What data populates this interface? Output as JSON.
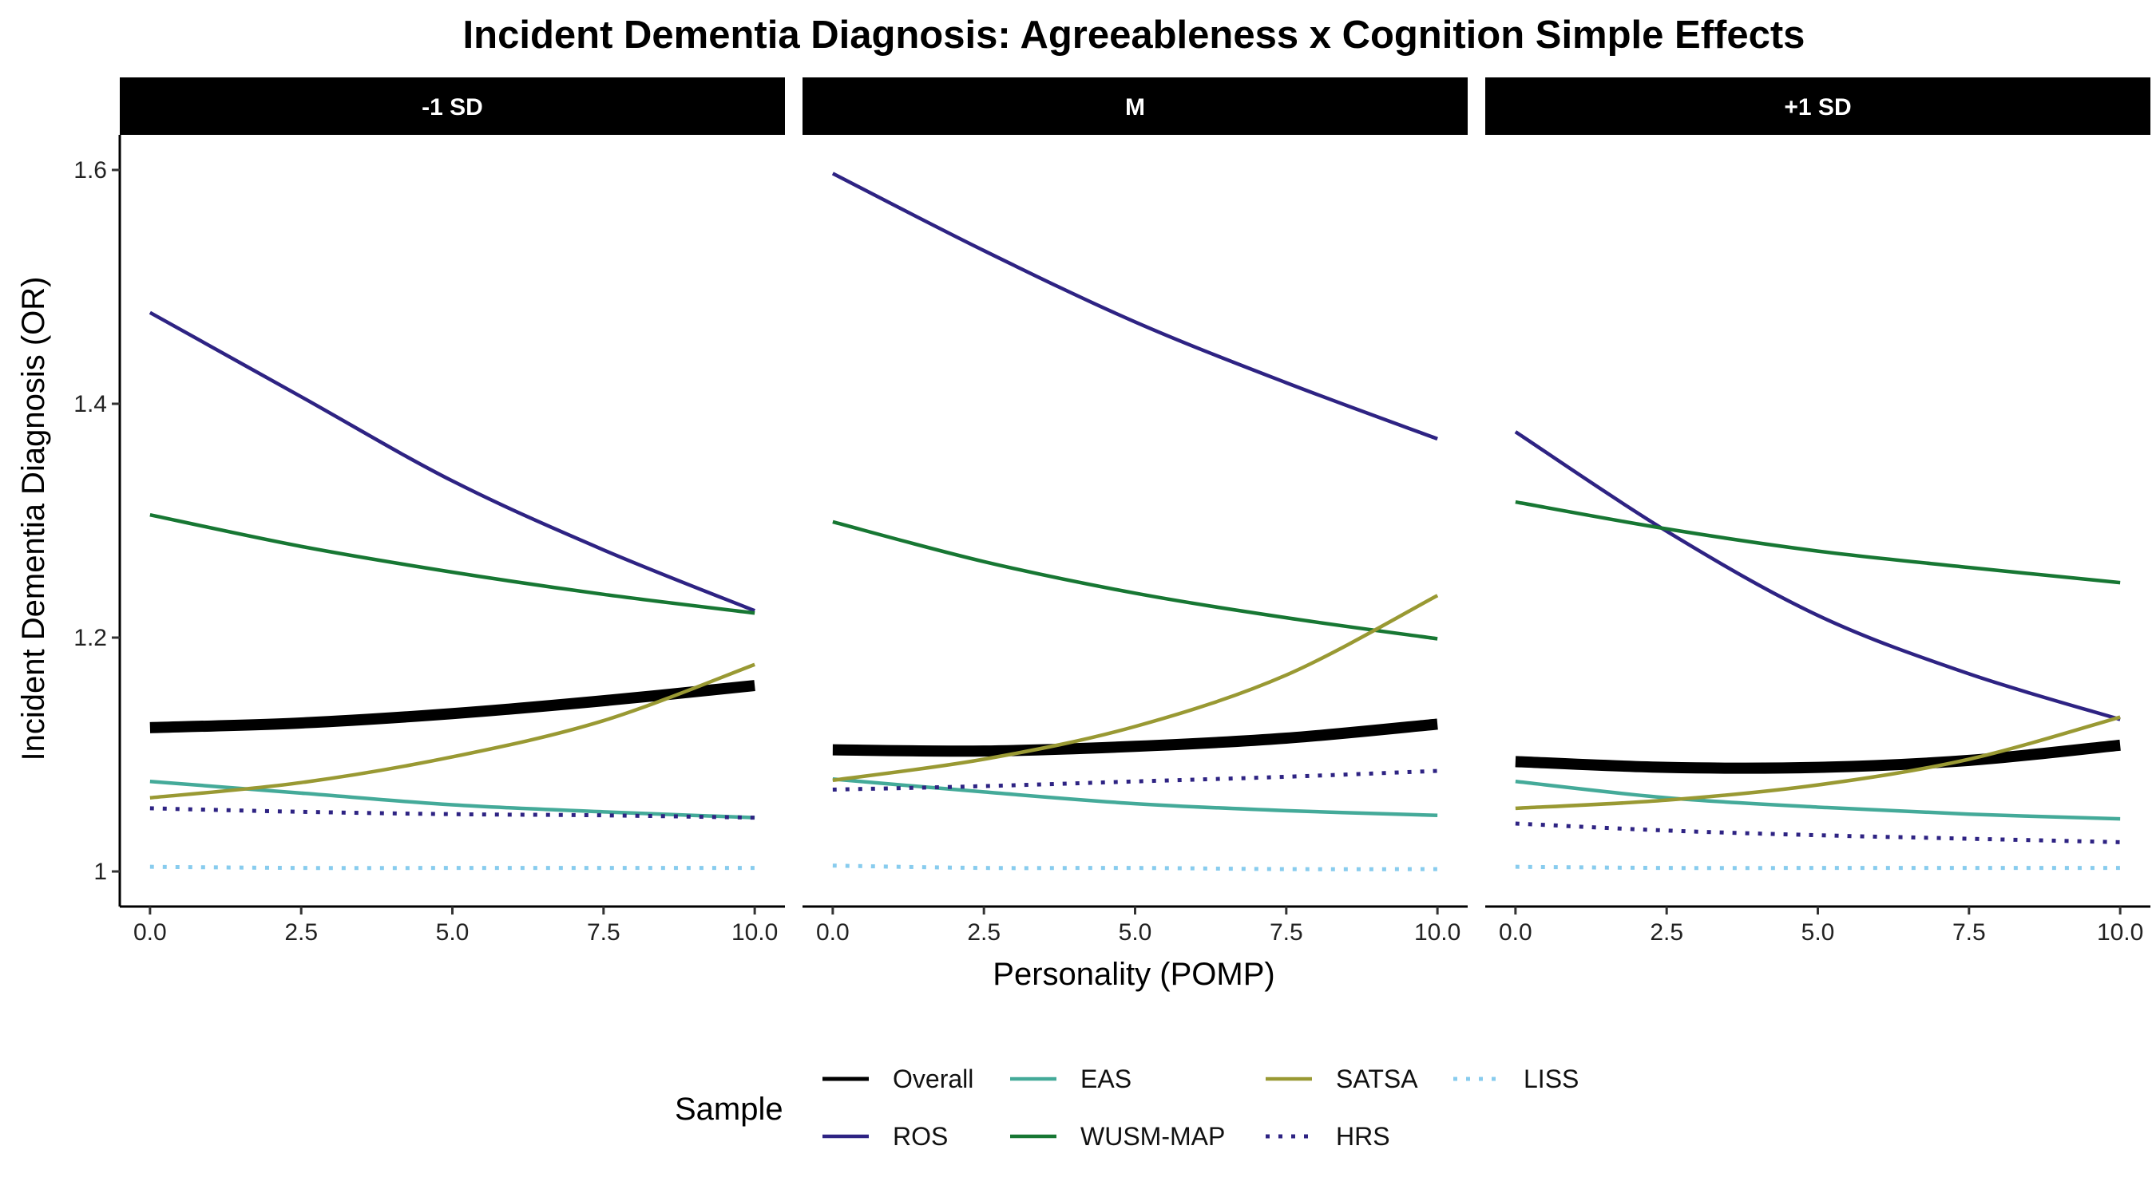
{
  "chart_data": {
    "type": "line",
    "title": "Incident Dementia Diagnosis: Agreeableness x Cognition Simple Effects",
    "xlabel": "Personality (POMP)",
    "ylabel": "Incident Dementia Diagnosis (OR)",
    "xlim": [
      -0.5,
      10.5
    ],
    "ylim": [
      0.97,
      1.63
    ],
    "x_ticks": [
      0,
      2.5,
      5,
      7.5,
      10
    ],
    "x_tick_labels": [
      "0.0",
      "2.5",
      "5.0",
      "7.5",
      "10.0"
    ],
    "y_ticks": [
      1,
      1.2,
      1.4,
      1.6
    ],
    "y_tick_labels": [
      "1",
      "1.2",
      "1.4",
      "1.6"
    ],
    "x": [
      0,
      2.5,
      5,
      7.5,
      10
    ],
    "grid": false,
    "legend_title": "Sample",
    "legend_position": "bottom",
    "legend_order": [
      "Overall",
      "ROS",
      "EAS",
      "WUSM-MAP",
      "SATSA",
      "HRS",
      "LISS"
    ],
    "series_style": {
      "Overall": {
        "color": "#000000",
        "width": 14,
        "dash": "none"
      },
      "ROS": {
        "color": "#2e2383",
        "width": 4.5,
        "dash": "none"
      },
      "EAS": {
        "color": "#44aa99",
        "width": 4.5,
        "dash": "none"
      },
      "WUSM-MAP": {
        "color": "#177733",
        "width": 4.5,
        "dash": "none"
      },
      "SATSA": {
        "color": "#999933",
        "width": 4.5,
        "dash": "none"
      },
      "HRS": {
        "color": "#2e2383",
        "width": 5,
        "dash": "dotted"
      },
      "LISS": {
        "color": "#88ccee",
        "width": 5,
        "dash": "dotted"
      }
    },
    "panels": [
      {
        "label": "-1 SD",
        "series": [
          {
            "name": "Overall",
            "values": [
              1.123,
              1.127,
              1.135,
              1.146,
              1.159
            ]
          },
          {
            "name": "ROS",
            "values": [
              1.478,
              1.406,
              1.334,
              1.275,
              1.223
            ]
          },
          {
            "name": "EAS",
            "values": [
              1.077,
              1.067,
              1.057,
              1.051,
              1.046
            ]
          },
          {
            "name": "WUSM-MAP",
            "values": [
              1.305,
              1.278,
              1.256,
              1.237,
              1.221
            ]
          },
          {
            "name": "SATSA",
            "values": [
              1.063,
              1.076,
              1.098,
              1.129,
              1.177
            ]
          },
          {
            "name": "HRS",
            "values": [
              1.054,
              1.051,
              1.049,
              1.048,
              1.046
            ]
          },
          {
            "name": "LISS",
            "values": [
              1.004,
              1.003,
              1.003,
              1.003,
              1.003
            ]
          }
        ]
      },
      {
        "label": "M",
        "series": [
          {
            "name": "Overall",
            "values": [
              1.104,
              1.103,
              1.107,
              1.114,
              1.126
            ]
          },
          {
            "name": "ROS",
            "values": [
              1.597,
              1.531,
              1.47,
              1.418,
              1.37
            ]
          },
          {
            "name": "EAS",
            "values": [
              1.079,
              1.068,
              1.058,
              1.052,
              1.048
            ]
          },
          {
            "name": "WUSM-MAP",
            "values": [
              1.299,
              1.265,
              1.238,
              1.217,
              1.199
            ]
          },
          {
            "name": "SATSA",
            "values": [
              1.078,
              1.096,
              1.124,
              1.168,
              1.236
            ]
          },
          {
            "name": "HRS",
            "values": [
              1.07,
              1.073,
              1.077,
              1.081,
              1.086
            ]
          },
          {
            "name": "LISS",
            "values": [
              1.005,
              1.003,
              1.003,
              1.002,
              1.002
            ]
          }
        ]
      },
      {
        "label": "+1 SD",
        "series": [
          {
            "name": "Overall",
            "values": [
              1.094,
              1.089,
              1.089,
              1.095,
              1.108
            ]
          },
          {
            "name": "ROS",
            "values": [
              1.376,
              1.291,
              1.219,
              1.169,
              1.13
            ]
          },
          {
            "name": "EAS",
            "values": [
              1.077,
              1.063,
              1.055,
              1.049,
              1.045
            ]
          },
          {
            "name": "WUSM-MAP",
            "values": [
              1.316,
              1.293,
              1.274,
              1.26,
              1.247
            ]
          },
          {
            "name": "SATSA",
            "values": [
              1.054,
              1.061,
              1.074,
              1.096,
              1.132
            ]
          },
          {
            "name": "HRS",
            "values": [
              1.041,
              1.035,
              1.031,
              1.028,
              1.025
            ]
          },
          {
            "name": "LISS",
            "values": [
              1.004,
              1.003,
              1.003,
              1.003,
              1.003
            ]
          }
        ]
      }
    ]
  }
}
